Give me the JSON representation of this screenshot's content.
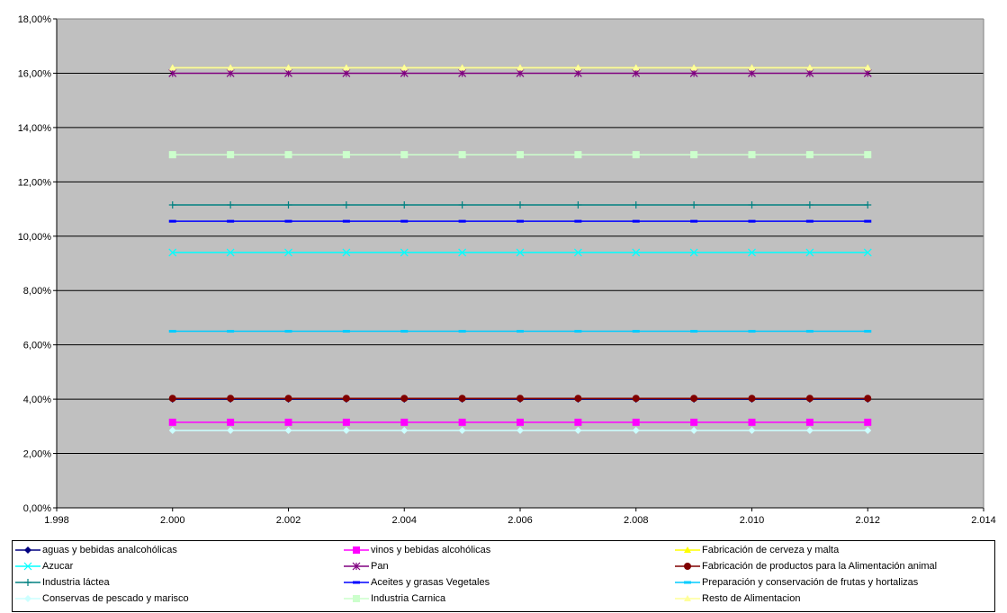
{
  "chart_data": {
    "type": "line",
    "title": "",
    "xlabel": "",
    "ylabel": "",
    "xlim": [
      1.998,
      2.014
    ],
    "ylim": [
      0,
      18
    ],
    "x_ticks": [
      "1.998",
      "2.000",
      "2.002",
      "2.004",
      "2.006",
      "2.008",
      "2.010",
      "2.012",
      "2.014"
    ],
    "x_tick_values": [
      1.998,
      2.0,
      2.002,
      2.004,
      2.006,
      2.008,
      2.01,
      2.012,
      2.014
    ],
    "y_ticks": [
      "0,00%",
      "2,00%",
      "4,00%",
      "6,00%",
      "8,00%",
      "10,00%",
      "12,00%",
      "14,00%",
      "16,00%",
      "18,00%"
    ],
    "y_tick_values": [
      0,
      2,
      4,
      6,
      8,
      10,
      12,
      14,
      16,
      18
    ],
    "grid": "horizontal",
    "plot_background": "#c0c0c0",
    "legend_position": "bottom",
    "x": [
      2.0,
      2.001,
      2.002,
      2.003,
      2.004,
      2.005,
      2.006,
      2.007,
      2.008,
      2.009,
      2.01,
      2.011,
      2.012
    ],
    "series": [
      {
        "name": "aguas y bebidas analcohólicas",
        "color": "#000080",
        "marker": "diamond",
        "values": [
          4.0,
          4.0,
          4.0,
          4.0,
          4.0,
          4.0,
          4.0,
          4.0,
          4.0,
          4.0,
          4.0,
          4.0,
          4.0
        ]
      },
      {
        "name": "vinos y bebidas alcohólicas",
        "color": "#ff00ff",
        "marker": "square",
        "values": [
          3.15,
          3.15,
          3.15,
          3.15,
          3.15,
          3.15,
          3.15,
          3.15,
          3.15,
          3.15,
          3.15,
          3.15,
          3.15
        ]
      },
      {
        "name": "Fabricación de cerveza y malta",
        "color": "#ffff00",
        "marker": "triangle",
        "values": [
          16.2,
          16.2,
          16.2,
          16.2,
          16.2,
          16.2,
          16.2,
          16.2,
          16.2,
          16.2,
          16.2,
          16.2,
          16.2
        ]
      },
      {
        "name": "Azucar",
        "color": "#00ffff",
        "marker": "x",
        "values": [
          9.4,
          9.4,
          9.4,
          9.4,
          9.4,
          9.4,
          9.4,
          9.4,
          9.4,
          9.4,
          9.4,
          9.4,
          9.4
        ]
      },
      {
        "name": "Pan",
        "color": "#800080",
        "marker": "star",
        "values": [
          16.0,
          16.0,
          16.0,
          16.0,
          16.0,
          16.0,
          16.0,
          16.0,
          16.0,
          16.0,
          16.0,
          16.0,
          16.0
        ]
      },
      {
        "name": "Fabricación de productos para la Alimentación animal",
        "color": "#800000",
        "marker": "circle",
        "values": [
          4.03,
          4.03,
          4.03,
          4.03,
          4.03,
          4.03,
          4.03,
          4.03,
          4.03,
          4.03,
          4.03,
          4.03,
          4.03
        ]
      },
      {
        "name": "Industria láctea",
        "color": "#008080",
        "marker": "plus",
        "values": [
          11.15,
          11.15,
          11.15,
          11.15,
          11.15,
          11.15,
          11.15,
          11.15,
          11.15,
          11.15,
          11.15,
          11.15,
          11.15
        ]
      },
      {
        "name": "Aceites y grasas Vegetales",
        "color": "#0000ff",
        "marker": "dash",
        "values": [
          10.55,
          10.55,
          10.55,
          10.55,
          10.55,
          10.55,
          10.55,
          10.55,
          10.55,
          10.55,
          10.55,
          10.55,
          10.55
        ]
      },
      {
        "name": "Preparación y conservación de frutas y hortalizas",
        "color": "#00ccff",
        "marker": "dash",
        "values": [
          6.5,
          6.5,
          6.5,
          6.5,
          6.5,
          6.5,
          6.5,
          6.5,
          6.5,
          6.5,
          6.5,
          6.5,
          6.5
        ]
      },
      {
        "name": "Conservas de pescado y marisco",
        "color": "#ccffff",
        "marker": "diamond",
        "values": [
          2.85,
          2.85,
          2.85,
          2.85,
          2.85,
          2.85,
          2.85,
          2.85,
          2.85,
          2.85,
          2.85,
          2.85,
          2.85
        ]
      },
      {
        "name": "Industria Carnica",
        "color": "#ccffcc",
        "marker": "square",
        "values": [
          13.0,
          13.0,
          13.0,
          13.0,
          13.0,
          13.0,
          13.0,
          13.0,
          13.0,
          13.0,
          13.0,
          13.0,
          13.0
        ]
      },
      {
        "name": "Resto de Alimentacion",
        "color": "#ffff99",
        "marker": "triangle",
        "values": [
          16.2,
          16.2,
          16.2,
          16.2,
          16.2,
          16.2,
          16.2,
          16.2,
          16.2,
          16.2,
          16.2,
          16.2,
          16.2
        ]
      }
    ]
  }
}
